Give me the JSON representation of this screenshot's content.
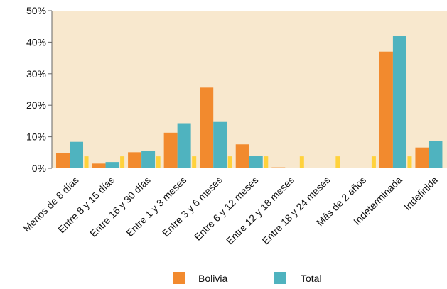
{
  "chart_data": {
    "type": "bar",
    "categories": [
      "Menos de 8 días",
      "Entre 8 y 15 días",
      "Entre 16 y 30 días",
      "Entre 1 y 3 meses",
      "Entre 3 y 6 meses",
      "Entre 6 y 12 meses",
      "Entre 12 y 18 meses",
      "Entre 18 y 24 meses",
      "Más de 2 años",
      "Indeterminada",
      "Indefinida"
    ],
    "series": [
      {
        "name": "Bolivia",
        "color": "#F28A2E",
        "values": [
          4.8,
          1.5,
          5.1,
          11.3,
          25.6,
          7.6,
          0.3,
          0.1,
          0.1,
          37.0,
          6.6
        ]
      },
      {
        "name": "Total",
        "color": "#4FB3BF",
        "values": [
          8.4,
          2.0,
          5.5,
          14.3,
          14.7,
          4.0,
          0.1,
          0.1,
          0.2,
          42.1,
          8.7
        ]
      }
    ],
    "markers": {
      "color": "#FFD23C",
      "value": 3.8
    },
    "yticks": [
      "0%",
      "10%",
      "20%",
      "30%",
      "40%",
      "50%"
    ],
    "ylim": [
      0,
      50
    ],
    "grid": false,
    "legend": "bottom",
    "plot_background": "#F8E8CE"
  }
}
